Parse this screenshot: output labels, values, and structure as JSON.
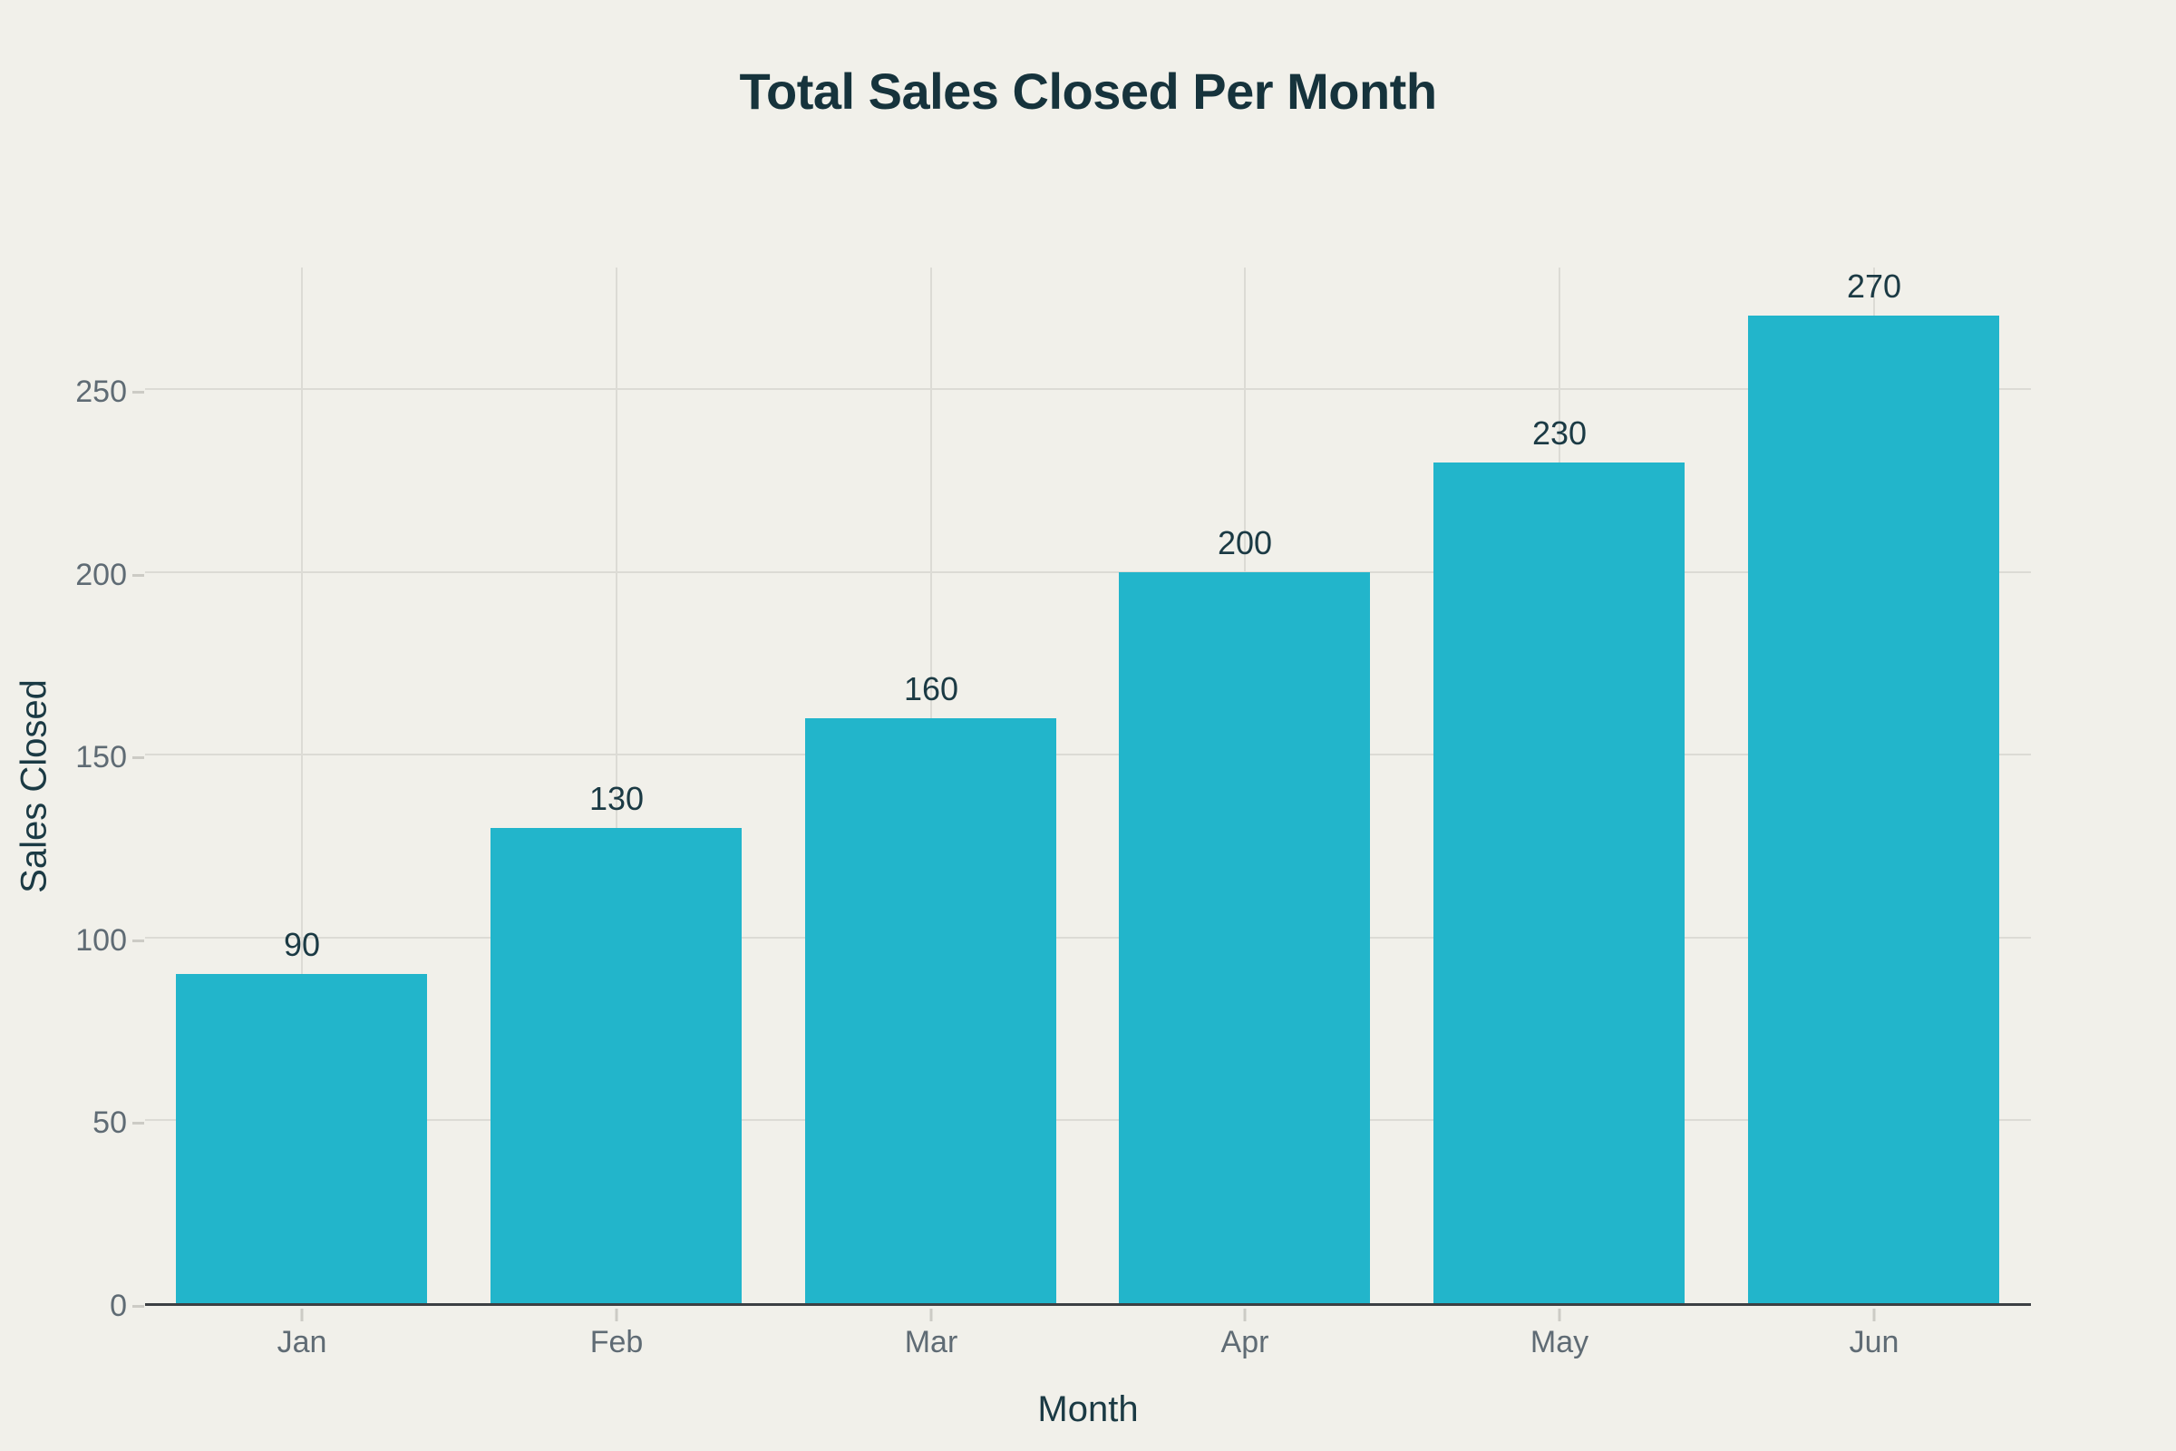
{
  "chart_data": {
    "type": "bar",
    "title": "Total Sales Closed Per Month",
    "xlabel": "Month",
    "ylabel": "Sales Closed",
    "categories": [
      "Jan",
      "Feb",
      "Mar",
      "Apr",
      "May",
      "Jun"
    ],
    "values": [
      90,
      130,
      160,
      200,
      230,
      270
    ],
    "bar_labels": [
      "90",
      "130",
      "160",
      "200",
      "230",
      "270"
    ],
    "yticks": [
      0,
      50,
      100,
      150,
      200,
      250
    ],
    "ylim": [
      0,
      284
    ],
    "grid": true,
    "grid_vertical": true,
    "legend": false,
    "bar_width_fraction": 0.8
  },
  "colors": {
    "background": "#f1f0ea",
    "bar": "#22b5cb",
    "title_text": "#16333c",
    "axis_label_text": "#1b3a44",
    "tick_text": "#5f6b74",
    "gridline": "#dcdbd5",
    "axis_line": "#3c4043",
    "tick_mark": "#cccbc5"
  }
}
